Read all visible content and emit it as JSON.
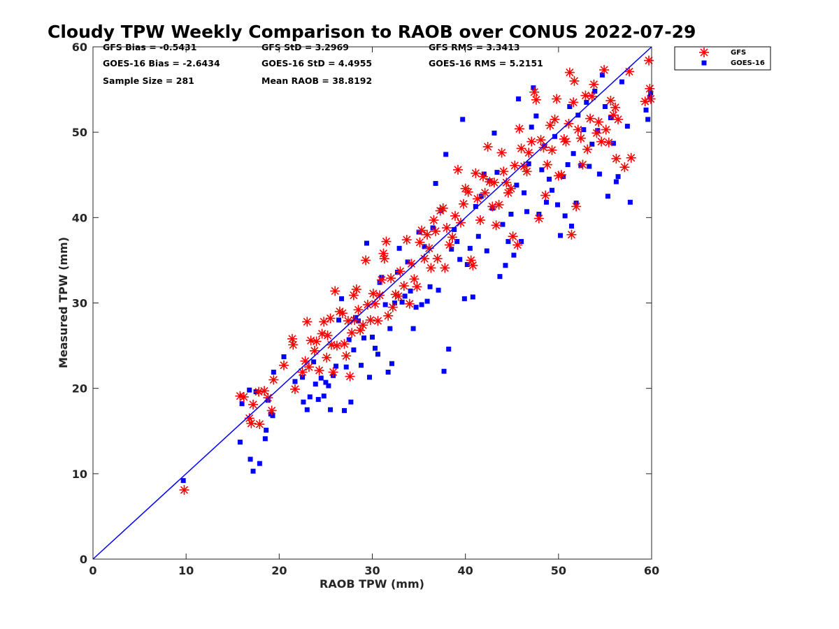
{
  "chart_data": {
    "type": "scatter",
    "title": "Cloudy TPW Weekly Comparison to RAOB over CONUS 2022-07-29",
    "xlabel": "RAOB TPW (mm)",
    "ylabel": "Measured TPW (mm)",
    "xlim": [
      0,
      60
    ],
    "ylim": [
      0,
      60
    ],
    "xticks": [
      "0",
      "10",
      "20",
      "30",
      "40",
      "50",
      "60"
    ],
    "yticks": [
      "0",
      "10",
      "20",
      "30",
      "40",
      "50",
      "60"
    ],
    "grid": false,
    "legend_position": "outside-top-right",
    "reference_line": {
      "x": [
        0,
        60
      ],
      "y": [
        0,
        60
      ],
      "color": "#0000ff"
    },
    "stats": [
      [
        "GFS Bias = -0.5431",
        "GFS StD = 3.2969",
        "GFS RMS = 3.3413"
      ],
      [
        "GOES-16 Bias = -2.6434",
        "GOES-16 StD = 4.4955",
        "GOES-16 RMS = 5.2151"
      ],
      [
        "Sample Size = 281",
        "Mean RAOB = 38.8192",
        ""
      ]
    ],
    "series": [
      {
        "name": "GFS",
        "marker": "asterisk",
        "color": "#ff0000",
        "points": [
          [
            9.8,
            8.1
          ],
          [
            15.8,
            19.1
          ],
          [
            16.2,
            19.0
          ],
          [
            16.8,
            16.5
          ],
          [
            17.0,
            15.9
          ],
          [
            17.2,
            18.1
          ],
          [
            17.8,
            19.6
          ],
          [
            17.9,
            15.8
          ],
          [
            18.4,
            19.7
          ],
          [
            18.8,
            18.9
          ],
          [
            19.2,
            17.4
          ],
          [
            19.4,
            21.0
          ],
          [
            20.5,
            22.7
          ],
          [
            21.4,
            25.8
          ],
          [
            21.5,
            25.1
          ],
          [
            21.7,
            19.9
          ],
          [
            22.5,
            21.9
          ],
          [
            22.8,
            23.2
          ],
          [
            23.0,
            27.8
          ],
          [
            23.2,
            22.5
          ],
          [
            23.4,
            25.6
          ],
          [
            23.8,
            24.4
          ],
          [
            24.0,
            25.5
          ],
          [
            24.3,
            22.1
          ],
          [
            24.6,
            26.4
          ],
          [
            24.8,
            27.8
          ],
          [
            25.1,
            23.6
          ],
          [
            25.2,
            26.2
          ],
          [
            25.5,
            28.2
          ],
          [
            25.6,
            25.1
          ],
          [
            25.8,
            21.9
          ],
          [
            26.0,
            31.4
          ],
          [
            26.2,
            25.0
          ],
          [
            26.5,
            29.0
          ],
          [
            26.8,
            28.8
          ],
          [
            27.0,
            25.2
          ],
          [
            27.2,
            23.8
          ],
          [
            27.4,
            27.9
          ],
          [
            27.6,
            21.4
          ],
          [
            27.8,
            26.5
          ],
          [
            28.0,
            30.9
          ],
          [
            28.1,
            28.0
          ],
          [
            28.3,
            31.6
          ],
          [
            28.5,
            29.2
          ],
          [
            28.7,
            26.8
          ],
          [
            29.0,
            27.4
          ],
          [
            29.3,
            35.0
          ],
          [
            29.5,
            29.8
          ],
          [
            29.8,
            28.0
          ],
          [
            30.1,
            31.1
          ],
          [
            30.3,
            29.9
          ],
          [
            30.6,
            27.9
          ],
          [
            30.8,
            30.9
          ],
          [
            31.0,
            32.7
          ],
          [
            31.2,
            35.8
          ],
          [
            31.3,
            35.2
          ],
          [
            31.5,
            37.2
          ],
          [
            31.7,
            28.5
          ],
          [
            32.0,
            32.9
          ],
          [
            32.2,
            29.5
          ],
          [
            32.5,
            31.0
          ],
          [
            32.8,
            30.8
          ],
          [
            33.0,
            33.7
          ],
          [
            33.4,
            32.0
          ],
          [
            33.7,
            37.4
          ],
          [
            34.0,
            29.9
          ],
          [
            34.2,
            34.6
          ],
          [
            34.5,
            32.8
          ],
          [
            34.8,
            31.9
          ],
          [
            35.1,
            37.1
          ],
          [
            35.3,
            38.5
          ],
          [
            35.6,
            35.2
          ],
          [
            35.9,
            38.0
          ],
          [
            36.1,
            36.4
          ],
          [
            36.3,
            34.1
          ],
          [
            36.6,
            39.7
          ],
          [
            36.8,
            38.4
          ],
          [
            37.0,
            35.2
          ],
          [
            37.3,
            40.8
          ],
          [
            37.6,
            41.1
          ],
          [
            37.8,
            34.1
          ],
          [
            38.0,
            38.8
          ],
          [
            38.3,
            36.8
          ],
          [
            38.6,
            37.7
          ],
          [
            38.9,
            40.2
          ],
          [
            39.2,
            45.6
          ],
          [
            39.5,
            39.4
          ],
          [
            39.8,
            41.6
          ],
          [
            40.0,
            43.4
          ],
          [
            40.3,
            43.0
          ],
          [
            40.6,
            35.0
          ],
          [
            40.8,
            34.4
          ],
          [
            41.1,
            45.2
          ],
          [
            41.3,
            42.2
          ],
          [
            41.6,
            39.7
          ],
          [
            41.9,
            44.8
          ],
          [
            42.1,
            42.9
          ],
          [
            42.4,
            48.3
          ],
          [
            42.6,
            44.2
          ],
          [
            42.9,
            41.3
          ],
          [
            43.1,
            44.1
          ],
          [
            43.3,
            39.1
          ],
          [
            43.6,
            41.5
          ],
          [
            43.9,
            47.6
          ],
          [
            44.1,
            45.4
          ],
          [
            44.4,
            44.1
          ],
          [
            44.6,
            42.9
          ],
          [
            44.9,
            43.4
          ],
          [
            45.1,
            37.8
          ],
          [
            45.3,
            46.1
          ],
          [
            45.6,
            36.8
          ],
          [
            45.8,
            50.4
          ],
          [
            46.0,
            48.1
          ],
          [
            46.3,
            46.0
          ],
          [
            46.6,
            45.4
          ],
          [
            46.8,
            47.6
          ],
          [
            47.1,
            48.9
          ],
          [
            47.4,
            54.7
          ],
          [
            47.6,
            53.8
          ],
          [
            47.9,
            39.9
          ],
          [
            48.1,
            49.1
          ],
          [
            48.4,
            48.2
          ],
          [
            48.6,
            42.6
          ],
          [
            48.8,
            46.2
          ],
          [
            49.1,
            50.8
          ],
          [
            49.3,
            47.9
          ],
          [
            49.6,
            51.5
          ],
          [
            49.8,
            53.9
          ],
          [
            50.0,
            44.9
          ],
          [
            50.3,
            45.0
          ],
          [
            50.6,
            49.2
          ],
          [
            50.8,
            48.9
          ],
          [
            51.1,
            51.0
          ],
          [
            51.2,
            57.0
          ],
          [
            51.4,
            38.0
          ],
          [
            51.6,
            53.5
          ],
          [
            51.7,
            56.0
          ],
          [
            51.9,
            41.3
          ],
          [
            52.1,
            50.3
          ],
          [
            52.4,
            49.3
          ],
          [
            52.6,
            46.2
          ],
          [
            52.9,
            54.3
          ],
          [
            53.1,
            48.0
          ],
          [
            53.4,
            51.6
          ],
          [
            53.6,
            54.2
          ],
          [
            53.8,
            55.6
          ],
          [
            54.1,
            49.9
          ],
          [
            54.3,
            51.2
          ],
          [
            54.6,
            48.9
          ],
          [
            54.9,
            57.3
          ],
          [
            55.1,
            50.3
          ],
          [
            55.4,
            48.8
          ],
          [
            55.6,
            53.7
          ],
          [
            55.9,
            52.0
          ],
          [
            56.1,
            52.9
          ],
          [
            56.2,
            46.9
          ],
          [
            56.4,
            51.5
          ],
          [
            57.1,
            45.9
          ],
          [
            57.6,
            57.1
          ],
          [
            57.8,
            47.0
          ],
          [
            59.3,
            53.6
          ],
          [
            59.7,
            58.4
          ],
          [
            59.8,
            55.1
          ],
          [
            59.9,
            53.9
          ]
        ]
      },
      {
        "name": "GOES-16",
        "marker": "square",
        "color": "#0000ff",
        "points": [
          [
            9.7,
            9.2
          ],
          [
            15.8,
            13.7
          ],
          [
            16.0,
            18.2
          ],
          [
            16.8,
            19.8
          ],
          [
            16.9,
            11.7
          ],
          [
            17.2,
            10.3
          ],
          [
            17.5,
            19.6
          ],
          [
            17.9,
            11.2
          ],
          [
            18.5,
            14.1
          ],
          [
            18.6,
            15.1
          ],
          [
            18.8,
            18.6
          ],
          [
            19.1,
            17.0
          ],
          [
            19.3,
            16.8
          ],
          [
            19.4,
            21.9
          ],
          [
            20.5,
            23.7
          ],
          [
            21.7,
            20.8
          ],
          [
            22.5,
            21.3
          ],
          [
            22.6,
            18.4
          ],
          [
            23.0,
            17.5
          ],
          [
            23.3,
            19.0
          ],
          [
            23.7,
            23.1
          ],
          [
            23.9,
            20.5
          ],
          [
            24.2,
            18.7
          ],
          [
            24.5,
            21.2
          ],
          [
            24.8,
            19.1
          ],
          [
            25.0,
            20.7
          ],
          [
            25.3,
            20.3
          ],
          [
            25.5,
            17.5
          ],
          [
            25.8,
            21.5
          ],
          [
            26.1,
            22.6
          ],
          [
            26.4,
            28.0
          ],
          [
            26.7,
            30.5
          ],
          [
            27.0,
            17.4
          ],
          [
            27.2,
            22.5
          ],
          [
            27.5,
            25.7
          ],
          [
            27.7,
            18.4
          ],
          [
            28.0,
            24.5
          ],
          [
            28.2,
            28.3
          ],
          [
            28.5,
            27.9
          ],
          [
            28.8,
            22.7
          ],
          [
            29.1,
            25.9
          ],
          [
            29.4,
            37.0
          ],
          [
            29.7,
            21.3
          ],
          [
            30.0,
            26.0
          ],
          [
            30.3,
            24.7
          ],
          [
            30.6,
            24.0
          ],
          [
            30.8,
            32.4
          ],
          [
            31.0,
            33.0
          ],
          [
            31.4,
            29.8
          ],
          [
            31.7,
            21.9
          ],
          [
            31.9,
            27.0
          ],
          [
            32.1,
            22.9
          ],
          [
            32.4,
            30.0
          ],
          [
            32.7,
            33.6
          ],
          [
            32.9,
            36.4
          ],
          [
            33.2,
            30.1
          ],
          [
            33.5,
            30.8
          ],
          [
            33.8,
            34.8
          ],
          [
            34.1,
            31.4
          ],
          [
            34.4,
            27.0
          ],
          [
            34.7,
            29.5
          ],
          [
            35.0,
            38.3
          ],
          [
            35.3,
            29.8
          ],
          [
            35.6,
            36.6
          ],
          [
            35.9,
            30.2
          ],
          [
            36.2,
            31.9
          ],
          [
            36.5,
            38.8
          ],
          [
            36.8,
            44.0
          ],
          [
            37.1,
            31.5
          ],
          [
            37.4,
            40.8
          ],
          [
            37.7,
            22.0
          ],
          [
            37.9,
            47.4
          ],
          [
            38.2,
            24.6
          ],
          [
            38.5,
            36.3
          ],
          [
            38.8,
            38.6
          ],
          [
            39.1,
            37.2
          ],
          [
            39.4,
            35.1
          ],
          [
            39.7,
            51.5
          ],
          [
            39.9,
            30.5
          ],
          [
            40.2,
            34.5
          ],
          [
            40.5,
            36.4
          ],
          [
            40.8,
            30.7
          ],
          [
            41.1,
            41.3
          ],
          [
            41.4,
            37.8
          ],
          [
            41.7,
            42.5
          ],
          [
            42.0,
            45.1
          ],
          [
            42.3,
            36.1
          ],
          [
            42.6,
            44.3
          ],
          [
            42.9,
            41.1
          ],
          [
            43.1,
            49.9
          ],
          [
            43.4,
            45.3
          ],
          [
            43.7,
            33.1
          ],
          [
            44.0,
            39.2
          ],
          [
            44.3,
            34.4
          ],
          [
            44.6,
            37.2
          ],
          [
            44.9,
            40.4
          ],
          [
            45.2,
            35.6
          ],
          [
            45.5,
            43.8
          ],
          [
            45.7,
            53.9
          ],
          [
            46.0,
            37.2
          ],
          [
            46.3,
            42.9
          ],
          [
            46.6,
            40.7
          ],
          [
            46.8,
            46.3
          ],
          [
            47.1,
            50.6
          ],
          [
            47.3,
            55.2
          ],
          [
            47.6,
            51.9
          ],
          [
            47.9,
            40.4
          ],
          [
            48.2,
            45.6
          ],
          [
            48.5,
            48.4
          ],
          [
            48.7,
            41.8
          ],
          [
            49.0,
            44.5
          ],
          [
            49.3,
            43.2
          ],
          [
            49.6,
            49.5
          ],
          [
            49.9,
            41.5
          ],
          [
            50.2,
            37.9
          ],
          [
            50.5,
            44.8
          ],
          [
            50.7,
            40.2
          ],
          [
            51.0,
            46.2
          ],
          [
            51.2,
            53.0
          ],
          [
            51.4,
            39.0
          ],
          [
            51.6,
            47.5
          ],
          [
            51.9,
            41.7
          ],
          [
            52.1,
            52.0
          ],
          [
            52.4,
            46.1
          ],
          [
            52.7,
            50.3
          ],
          [
            53.0,
            53.5
          ],
          [
            53.3,
            46.0
          ],
          [
            53.6,
            48.6
          ],
          [
            53.9,
            54.8
          ],
          [
            54.2,
            50.2
          ],
          [
            54.4,
            45.1
          ],
          [
            54.7,
            56.7
          ],
          [
            55.0,
            53.0
          ],
          [
            55.3,
            42.5
          ],
          [
            55.6,
            51.7
          ],
          [
            55.9,
            48.7
          ],
          [
            56.2,
            44.2
          ],
          [
            56.4,
            44.8
          ],
          [
            56.8,
            55.9
          ],
          [
            57.4,
            50.7
          ],
          [
            57.7,
            41.8
          ],
          [
            59.4,
            52.6
          ],
          [
            59.6,
            51.5
          ],
          [
            59.8,
            54.1
          ],
          [
            59.9,
            54.6
          ]
        ]
      }
    ]
  }
}
